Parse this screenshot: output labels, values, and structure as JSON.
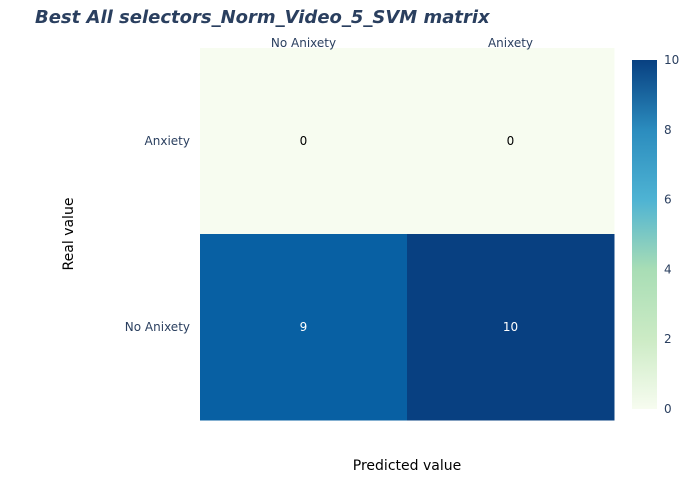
{
  "chart_data": {
    "type": "heatmap",
    "title": "Best All selectors_Norm_Video_5_SVM matrix",
    "xlabel": "Predicted value",
    "ylabel": "Real value",
    "x_categories": [
      "No Anixety",
      "Anixety"
    ],
    "y_categories": [
      "Anxiety",
      "No Anixety"
    ],
    "values": [
      [
        0,
        0
      ],
      [
        9,
        10
      ]
    ],
    "zlim": [
      0,
      10
    ],
    "colorbar_ticks": [
      0,
      2,
      4,
      6,
      8,
      10
    ],
    "colorscale": "GnBu",
    "x_axis_side": "top"
  },
  "colors": {
    "title": "#2a3f5f",
    "ticks": "#2a3f5f",
    "label_dark": "#000000",
    "label_light": "#ffffff"
  }
}
